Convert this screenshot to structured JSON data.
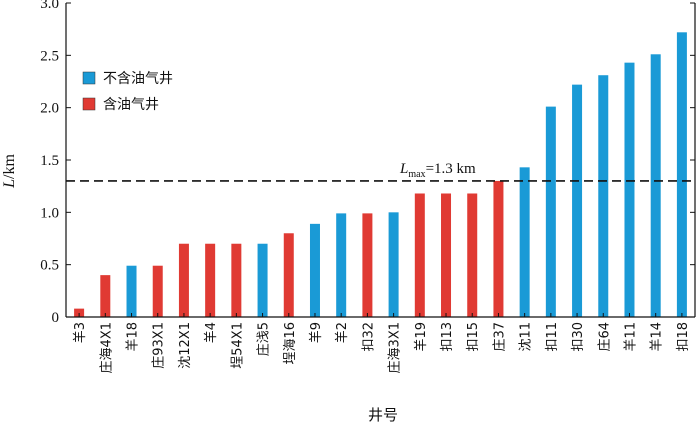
{
  "chart_data": {
    "type": "bar",
    "title": "",
    "xlabel": "井号",
    "ylabel": {
      "symbol": "L",
      "unit": "/km"
    },
    "ylim": [
      0,
      3.0
    ],
    "yticks": [
      "0",
      "0.5",
      "1.0",
      "1.5",
      "2.0",
      "2.5",
      "3.0"
    ],
    "categories": [
      "羊3",
      "庄海4X1",
      "羊18",
      "庄93X1",
      "沈12X1",
      "羊4",
      "埕54X1",
      "庄浅5",
      "埕海16",
      "羊9",
      "羊2",
      "扣32",
      "庄海3X1",
      "羊19",
      "扣13",
      "扣15",
      "庄37",
      "沈11",
      "扣11",
      "扣30",
      "庄64",
      "羊11",
      "羊14",
      "扣18"
    ],
    "values": [
      0.08,
      0.4,
      0.49,
      0.49,
      0.7,
      0.7,
      0.7,
      0.7,
      0.8,
      0.89,
      0.99,
      0.99,
      1.0,
      1.18,
      1.18,
      1.18,
      1.3,
      1.43,
      2.01,
      2.22,
      2.31,
      2.43,
      2.51,
      2.72
    ],
    "groups": [
      "oil",
      "oil",
      "no_oil",
      "oil",
      "oil",
      "oil",
      "oil",
      "no_oil",
      "oil",
      "no_oil",
      "no_oil",
      "oil",
      "no_oil",
      "oil",
      "oil",
      "oil",
      "oil",
      "no_oil",
      "no_oil",
      "no_oil",
      "no_oil",
      "no_oil",
      "no_oil",
      "no_oil"
    ],
    "legend": [
      {
        "key": "no_oil",
        "label": "不含油气井",
        "color": "#1a9ad6"
      },
      {
        "key": "oil",
        "label": "含油气井",
        "color": "#e03a33"
      }
    ],
    "legend_position": "top-left",
    "threshold": {
      "value": 1.3,
      "symbol": "L",
      "subscript": "max",
      "text": "=1.3 km"
    }
  }
}
